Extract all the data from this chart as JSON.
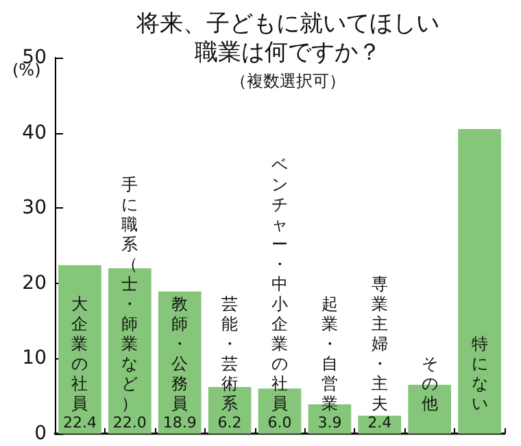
{
  "chart_data": {
    "type": "bar",
    "title": "将来、子どもに就いてほしい職業は何ですか？",
    "subtitle": "（複数選択可）",
    "ylabel": "(%)",
    "categories": [
      "大企業の社員",
      "手に職系（士・師業など）",
      "教師・公務員",
      "芸能・芸術系",
      "ベンチャー・中小企業の社員",
      "起業・自営業",
      "専業主婦・主夫",
      "その他",
      "特にない"
    ],
    "values": [
      22.4,
      22.0,
      18.9,
      6.2,
      6.0,
      3.9,
      2.4,
      6.5,
      40.5
    ],
    "value_labels": [
      "22.4",
      "22.0",
      "18.9",
      "6.2",
      "6.0",
      "3.9",
      "2.4",
      null,
      null
    ],
    "color": "#86c67a",
    "ylim": [
      0,
      50
    ],
    "yticks": [
      0,
      10,
      20,
      30,
      40,
      50
    ],
    "grid": false
  }
}
